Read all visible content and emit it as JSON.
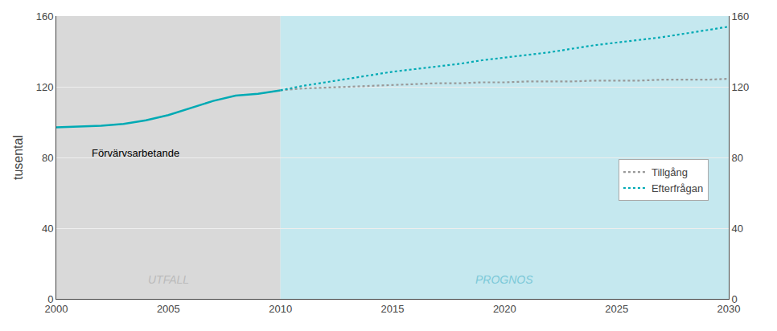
{
  "chart_data": {
    "type": "line",
    "ylabel": "tusental",
    "x": [
      2000,
      2001,
      2002,
      2003,
      2004,
      2005,
      2006,
      2007,
      2008,
      2009,
      2010,
      2011,
      2012,
      2013,
      2014,
      2015,
      2016,
      2017,
      2018,
      2019,
      2020,
      2021,
      2022,
      2023,
      2024,
      2025,
      2026,
      2027,
      2028,
      2029,
      2030
    ],
    "series": [
      {
        "color": "#00aab4",
        "line_style": "solid",
        "values": [
          97,
          97.5,
          98,
          99,
          101,
          104,
          108,
          112,
          115,
          116,
          118,
          null,
          null,
          null,
          null,
          null,
          null,
          null,
          null,
          null,
          null,
          null,
          null,
          null,
          null,
          null,
          null,
          null,
          null,
          null,
          null
        ]
      },
      {
        "name": "Tillgång",
        "color": "#999999",
        "line_style": "dotted",
        "values": [
          null,
          null,
          null,
          null,
          null,
          null,
          null,
          null,
          null,
          null,
          118,
          119,
          119.5,
          120,
          120.5,
          121,
          121.5,
          122,
          122,
          122.5,
          122.5,
          123,
          123,
          123,
          123.5,
          123.5,
          123.5,
          124,
          124,
          124,
          124.5
        ]
      },
      {
        "name": "Efterfrågan",
        "color": "#00aab4",
        "line_style": "dotted",
        "values": [
          null,
          null,
          null,
          null,
          null,
          null,
          null,
          null,
          null,
          null,
          118,
          120.5,
          122.5,
          124.5,
          126.5,
          128.5,
          130,
          131.5,
          133,
          135,
          136.5,
          138,
          139.5,
          141.5,
          143.5,
          145,
          146.5,
          148,
          150,
          152,
          154
        ]
      }
    ],
    "regions": [
      {
        "label": "UTFALL",
        "start": 2000,
        "end": 2010,
        "color": "#d9d9d9",
        "label_color": "#bbbbbb"
      },
      {
        "label": "PROGNOS",
        "start": 2010,
        "end": 2030,
        "color": "#c5e8ef",
        "label_color": "#7cc8d8"
      }
    ],
    "annotations": [
      {
        "text": "Förvärvsarbetande",
        "x": 2001.5,
        "y": 87
      }
    ],
    "xlim": [
      2000,
      2030
    ],
    "xticks": [
      2000,
      2005,
      2010,
      2015,
      2020,
      2025,
      2030
    ],
    "ylim": [
      0,
      160
    ],
    "yticks": [
      0,
      40,
      80,
      120,
      160
    ],
    "y2lim": [
      0,
      160
    ],
    "y2ticks": [
      0,
      40,
      80,
      120,
      160
    ],
    "grid": true,
    "legend": "right"
  }
}
